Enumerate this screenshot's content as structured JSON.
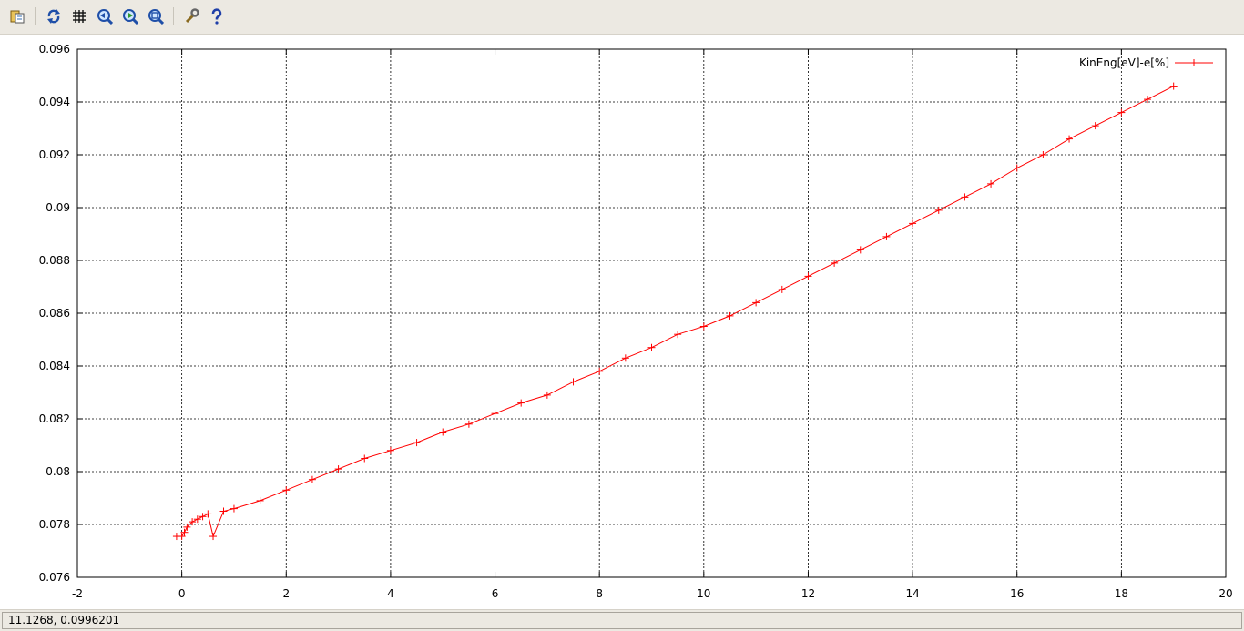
{
  "toolbar": {
    "buttons": [
      {
        "name": "copy-to-clipboard-icon"
      },
      {
        "name": "replot-icon"
      },
      {
        "name": "grid-icon"
      },
      {
        "name": "previous-zoom-icon"
      },
      {
        "name": "next-zoom-icon"
      },
      {
        "name": "autoscale-icon"
      },
      {
        "name": "config-wrench-icon"
      },
      {
        "name": "help-icon"
      }
    ]
  },
  "status": {
    "coordinates": "11.1268,  0.0996201"
  },
  "colors": {
    "series": "#ff0000",
    "grid": "#000000",
    "toolbar_bg": "#ece9e2"
  },
  "chart_data": {
    "type": "scatter",
    "title": "",
    "xlabel": "",
    "ylabel": "",
    "xlim": [
      -2,
      20
    ],
    "ylim": [
      0.076,
      0.096
    ],
    "xticks": [
      "-2",
      "0",
      "2",
      "4",
      "6",
      "8",
      "10",
      "12",
      "14",
      "16",
      "18",
      "20"
    ],
    "yticks": [
      "0.076",
      "0.078",
      "0.08",
      "0.082",
      "0.084",
      "0.086",
      "0.088",
      "0.09",
      "0.092",
      "0.094",
      "0.096"
    ],
    "grid": true,
    "legend_position": "top-right",
    "series": [
      {
        "name": "KinEng[eV]-e[%]",
        "marker": "+",
        "x": [
          -0.1,
          0.0,
          0.05,
          0.1,
          0.2,
          0.3,
          0.4,
          0.5,
          0.6,
          0.8,
          1.0,
          1.5,
          2.0,
          2.5,
          3.0,
          3.5,
          4.0,
          4.5,
          5.0,
          5.5,
          6.0,
          6.5,
          7.0,
          7.5,
          8.0,
          8.5,
          9.0,
          9.5,
          10.0,
          10.5,
          11.0,
          11.5,
          12.0,
          12.5,
          13.0,
          13.5,
          14.0,
          14.5,
          15.0,
          15.5,
          16.0,
          16.5,
          17.0,
          17.5,
          18.0,
          18.5,
          19.0
        ],
        "y": [
          0.07755,
          0.07755,
          0.0777,
          0.0779,
          0.0781,
          0.0782,
          0.0783,
          0.0784,
          0.07755,
          0.0785,
          0.0786,
          0.0789,
          0.0793,
          0.0797,
          0.0801,
          0.0805,
          0.0808,
          0.0811,
          0.0815,
          0.0818,
          0.0822,
          0.0826,
          0.0829,
          0.0834,
          0.0838,
          0.0843,
          0.0847,
          0.0852,
          0.0855,
          0.0859,
          0.0864,
          0.0869,
          0.0874,
          0.0879,
          0.0884,
          0.0889,
          0.0894,
          0.0899,
          0.0904,
          0.0909,
          0.0915,
          0.092,
          0.0926,
          0.0931,
          0.0936,
          0.0941,
          0.0946
        ]
      }
    ]
  }
}
